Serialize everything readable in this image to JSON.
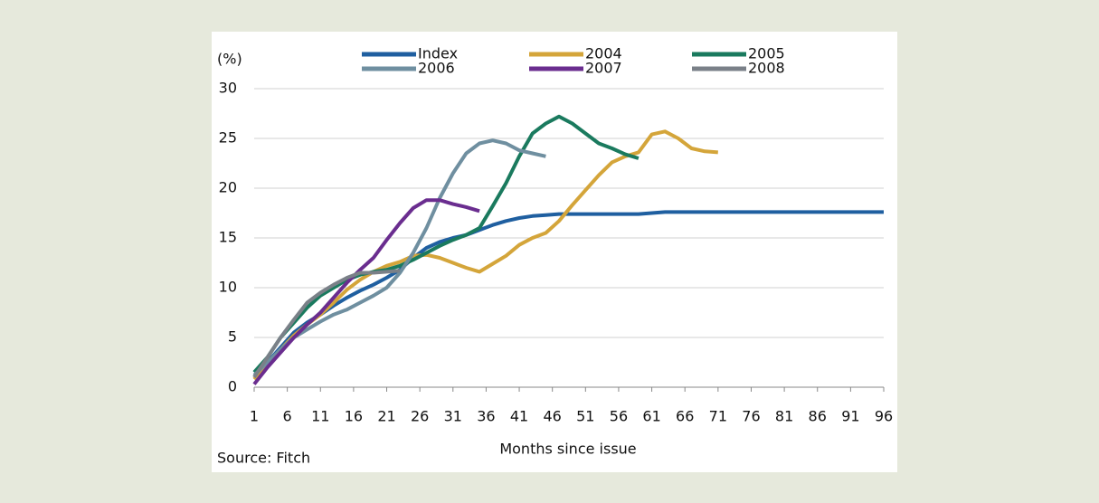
{
  "chart_data": {
    "type": "line",
    "y_unit_label": "(%)",
    "xlabel": "Months since issue",
    "source": "Source: Fitch",
    "x": [
      1,
      3,
      5,
      7,
      9,
      11,
      13,
      15,
      17,
      19,
      21,
      23,
      25,
      27,
      29,
      31,
      33,
      35,
      37,
      39,
      41,
      43,
      45,
      47,
      49,
      51,
      53,
      55,
      57,
      59,
      61,
      63,
      65,
      67,
      69,
      71,
      73,
      75,
      77,
      79,
      81,
      83,
      85,
      87,
      89,
      91,
      93,
      95,
      96
    ],
    "xlim": [
      1,
      96
    ],
    "xticks": [
      1,
      6,
      11,
      16,
      21,
      26,
      31,
      36,
      41,
      46,
      51,
      56,
      61,
      66,
      71,
      76,
      81,
      86,
      91,
      96
    ],
    "ylim": [
      0,
      30
    ],
    "yticks": [
      0,
      5,
      10,
      15,
      20,
      25,
      30
    ],
    "grid": true,
    "series": [
      {
        "name": "Index",
        "color": "#1f5fa0",
        "values": [
          1,
          2.5,
          4,
          5.5,
          6.5,
          7.3,
          8.2,
          9,
          9.7,
          10.3,
          11,
          11.8,
          13,
          14,
          14.6,
          15,
          15.3,
          15.8,
          16.3,
          16.7,
          17,
          17.2,
          17.3,
          17.4,
          17.4,
          17.4,
          17.4,
          17.4,
          17.4,
          17.4,
          17.5,
          17.6,
          17.6,
          17.6,
          17.6,
          17.6,
          17.6,
          17.6,
          17.6,
          17.6,
          17.6,
          17.6,
          17.6,
          17.6,
          17.6,
          17.6,
          17.6,
          17.6,
          17.6
        ]
      },
      {
        "name": "2004",
        "color": "#d4a53a",
        "values": [
          0.8,
          2.3,
          3.8,
          5.2,
          6.3,
          7.3,
          8.5,
          9.8,
          10.8,
          11.6,
          12.2,
          12.6,
          13.2,
          13.3,
          13,
          12.5,
          12,
          11.6,
          12.4,
          13.2,
          14.3,
          15,
          15.5,
          16.7,
          18.3,
          19.8,
          21.3,
          22.6,
          23.2,
          23.6,
          25.4,
          25.7,
          25,
          24,
          23.7,
          23.6,
          null,
          null,
          null,
          null,
          null,
          null,
          null,
          null,
          null,
          null,
          null,
          null,
          null
        ]
      },
      {
        "name": "2005",
        "color": "#1a7a5e",
        "values": [
          1.5,
          3,
          5,
          6.5,
          8,
          9.2,
          10,
          10.8,
          11.3,
          11.6,
          11.8,
          12.2,
          12.8,
          13.5,
          14.2,
          14.8,
          15.3,
          16,
          18.2,
          20.5,
          23.2,
          25.5,
          26.5,
          27.2,
          26.5,
          25.5,
          24.5,
          24,
          23.4,
          23,
          null,
          null,
          null,
          null,
          null,
          null,
          null,
          null,
          null,
          null,
          null,
          null,
          null,
          null,
          null,
          null,
          null,
          null,
          null
        ]
      },
      {
        "name": "2006",
        "color": "#6f8fa0",
        "values": [
          1.2,
          2.5,
          3.8,
          5,
          5.8,
          6.6,
          7.3,
          7.8,
          8.5,
          9.2,
          10,
          11.5,
          13.5,
          16,
          19,
          21.5,
          23.5,
          24.5,
          24.8,
          24.5,
          23.8,
          23.5,
          23.2,
          null,
          null,
          null,
          null,
          null,
          null,
          null,
          null,
          null,
          null,
          null,
          null,
          null,
          null,
          null,
          null,
          null,
          null,
          null,
          null,
          null,
          null,
          null,
          null,
          null,
          null
        ]
      },
      {
        "name": "2007",
        "color": "#6a2d8f",
        "values": [
          0.3,
          2,
          3.5,
          5,
          6.3,
          7.5,
          9,
          10.5,
          11.8,
          13,
          14.8,
          16.5,
          18,
          18.8,
          18.8,
          18.4,
          18.1,
          17.7,
          null,
          null,
          null,
          null,
          null,
          null,
          null,
          null,
          null,
          null,
          null,
          null,
          null,
          null,
          null,
          null,
          null,
          null,
          null,
          null,
          null,
          null,
          null,
          null,
          null,
          null,
          null,
          null,
          null,
          null,
          null
        ]
      },
      {
        "name": "2008",
        "color": "#7a8088",
        "values": [
          1,
          3,
          5,
          6.8,
          8.5,
          9.5,
          10.3,
          11,
          11.5,
          11.5,
          11.6,
          11.7,
          null,
          null,
          null,
          null,
          null,
          null,
          null,
          null,
          null,
          null,
          null,
          null,
          null,
          null,
          null,
          null,
          null,
          null,
          null,
          null,
          null,
          null,
          null,
          null,
          null,
          null,
          null,
          null,
          null,
          null,
          null,
          null,
          null,
          null,
          null,
          null,
          null
        ]
      }
    ]
  }
}
